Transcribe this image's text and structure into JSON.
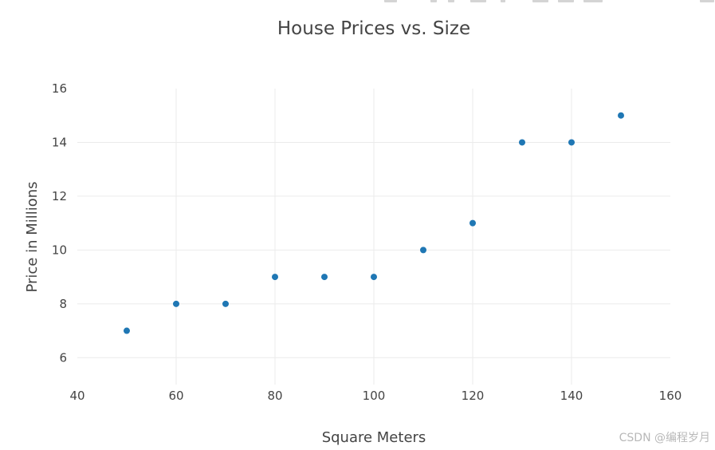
{
  "chart_data": {
    "type": "scatter",
    "title": "House Prices vs. Size",
    "xlabel": "Square Meters",
    "ylabel": "Price in Millions",
    "xlim": [
      40,
      160
    ],
    "ylim": [
      5,
      16
    ],
    "xticks": [
      40,
      60,
      80,
      100,
      120,
      140,
      160
    ],
    "yticks": [
      6,
      8,
      10,
      12,
      14,
      16
    ],
    "grid": true,
    "marker_color": "#1f77b4",
    "x": [
      50,
      60,
      70,
      80,
      90,
      100,
      110,
      120,
      130,
      140,
      150
    ],
    "y": [
      7,
      8,
      8,
      9,
      9,
      9,
      10,
      11,
      14,
      14,
      15
    ]
  },
  "watermark": "CSDN @编程岁月"
}
